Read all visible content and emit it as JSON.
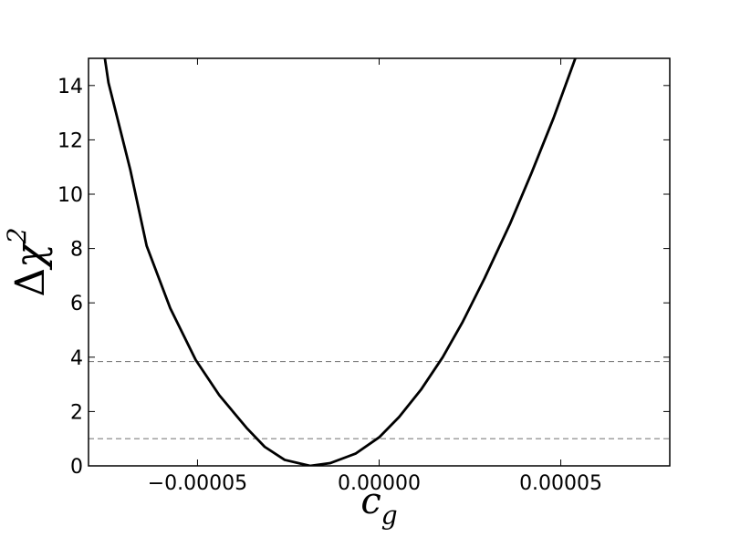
{
  "chart_data": {
    "type": "line",
    "title": "",
    "xlabel": "c",
    "xlabel_sub": "g",
    "ylabel_prefix": "Δ",
    "ylabel": "χ",
    "ylabel_sup": "2",
    "xlim": [
      -8e-05,
      8e-05
    ],
    "ylim": [
      0,
      15
    ],
    "x_ticks": [
      -5e-05,
      0.0,
      5e-05
    ],
    "x_tick_labels": [
      "−0.00005",
      "0.00000",
      "0.00005"
    ],
    "y_ticks": [
      0,
      2,
      4,
      6,
      8,
      10,
      12,
      14
    ],
    "y_tick_labels": [
      "0",
      "2",
      "4",
      "6",
      "8",
      "10",
      "12",
      "14"
    ],
    "grid": false,
    "series": [
      {
        "color": "#000000",
        "x": [
          -7.55e-05,
          -7.45e-05,
          -7.15e-05,
          -6.85e-05,
          -6.4e-05,
          -5.75e-05,
          -5.05e-05,
          -4.4e-05,
          -3.65e-05,
          -3.15e-05,
          -2.6e-05,
          -1.9e-05,
          -1.35e-05,
          -6.5e-06,
          0.0,
          5.5e-06,
          1.15e-05,
          1.75e-05,
          2.3e-05,
          2.9e-05,
          3.6e-05,
          4.2e-05,
          4.8e-05,
          5.4e-05
        ],
        "y": [
          15.0,
          14.1,
          12.5,
          10.9,
          8.1,
          5.8,
          3.9,
          2.6,
          1.4,
          0.7,
          0.22,
          0.0,
          0.1,
          0.45,
          1.05,
          1.8,
          2.8,
          4.0,
          5.3,
          6.9,
          8.9,
          10.8,
          12.8,
          15.0
        ]
      }
    ],
    "reference_lines": [
      {
        "y": 3.84,
        "color": "#808080",
        "style": "dashed"
      },
      {
        "y": 1.0,
        "color": "#808080",
        "style": "dashed"
      }
    ]
  }
}
